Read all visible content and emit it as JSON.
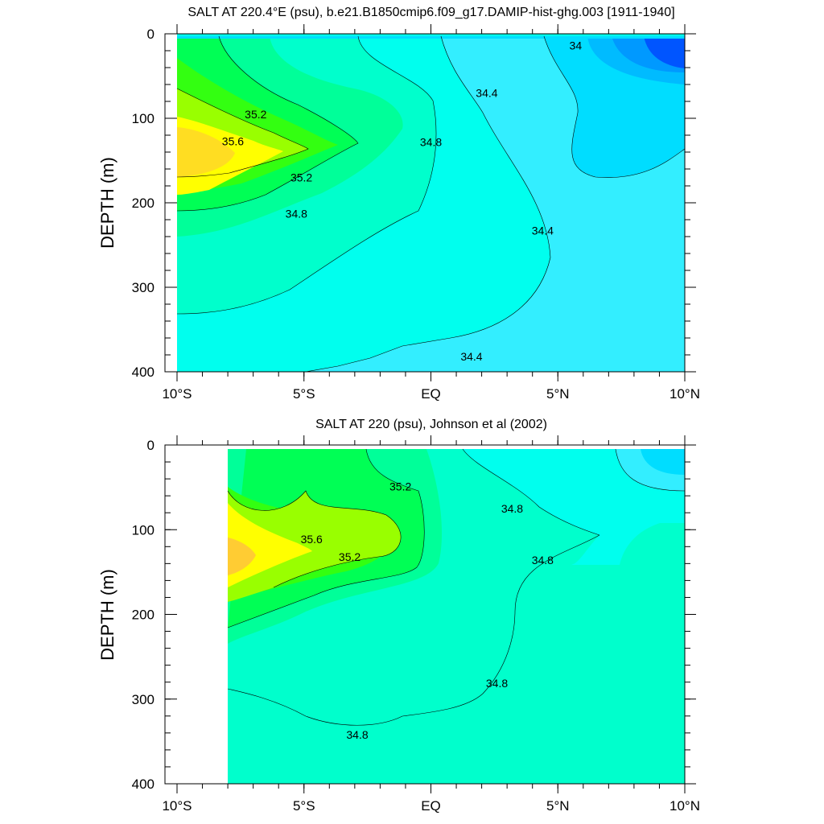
{
  "chart_data": [
    {
      "type": "contour",
      "title": "SALT AT 220.4°E (psu), b.e21.B1850cmip6.f09_g17.DAMIP-hist-ghg.003 [1911-1940]",
      "xlabel": "",
      "ylabel": "DEPTH (m)",
      "xlim": [
        -10,
        10
      ],
      "ylim": [
        0,
        400
      ],
      "y_inverted": true,
      "x_ticks": [
        {
          "value": -10,
          "label": "10°S"
        },
        {
          "value": -5,
          "label": "5°S"
        },
        {
          "value": 0,
          "label": "EQ"
        },
        {
          "value": 5,
          "label": "5°N"
        },
        {
          "value": 10,
          "label": "10°N"
        }
      ],
      "y_ticks": [
        {
          "value": 0,
          "label": "0"
        },
        {
          "value": 100,
          "label": "100"
        },
        {
          "value": 200,
          "label": "200"
        },
        {
          "value": 300,
          "label": "300"
        },
        {
          "value": 400,
          "label": "400"
        }
      ],
      "contour_labels": [
        {
          "text": "35.2",
          "x": -6.9,
          "depth": 95
        },
        {
          "text": "35.6",
          "x": -7.8,
          "depth": 127
        },
        {
          "text": "35.2",
          "x": -5.1,
          "depth": 170
        },
        {
          "text": "34.8",
          "x": -5.3,
          "depth": 213
        },
        {
          "text": "34.8",
          "x": 0.0,
          "depth": 128
        },
        {
          "text": "34.4",
          "x": 2.2,
          "depth": 70
        },
        {
          "text": "34.4",
          "x": 4.4,
          "depth": 233
        },
        {
          "text": "34.4",
          "x": 1.6,
          "depth": 382
        },
        {
          "text": "34",
          "x": 5.7,
          "depth": 14
        }
      ]
    },
    {
      "type": "contour",
      "title": "SALT AT 220 (psu), Johnson et al (2002)",
      "xlabel": "",
      "ylabel": "DEPTH (m)",
      "xlim": [
        -10,
        10
      ],
      "ylim": [
        0,
        400
      ],
      "y_inverted": true,
      "x_ticks": [
        {
          "value": -10,
          "label": "10°S"
        },
        {
          "value": -5,
          "label": "5°S"
        },
        {
          "value": 0,
          "label": "EQ"
        },
        {
          "value": 5,
          "label": "5°N"
        },
        {
          "value": 10,
          "label": "10°N"
        }
      ],
      "y_ticks": [
        {
          "value": 0,
          "label": "0"
        },
        {
          "value": 100,
          "label": "100"
        },
        {
          "value": 200,
          "label": "200"
        },
        {
          "value": 300,
          "label": "300"
        },
        {
          "value": 400,
          "label": "400"
        }
      ],
      "contour_labels": [
        {
          "text": "35.2",
          "x": -1.2,
          "depth": 49
        },
        {
          "text": "35.6",
          "x": -4.7,
          "depth": 111
        },
        {
          "text": "35.2",
          "x": -3.2,
          "depth": 132
        },
        {
          "text": "34.8",
          "x": 3.2,
          "depth": 75
        },
        {
          "text": "34.8",
          "x": 4.4,
          "depth": 136
        },
        {
          "text": "34.8",
          "x": 2.6,
          "depth": 281
        },
        {
          "text": "34.8",
          "x": -2.9,
          "depth": 342
        }
      ]
    }
  ]
}
